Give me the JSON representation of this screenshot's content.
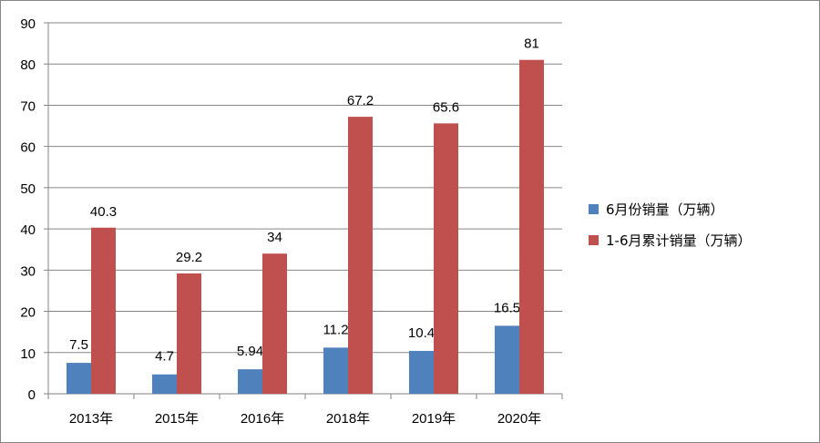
{
  "chart_data": {
    "type": "bar",
    "title": "",
    "xlabel": "",
    "ylabel": "",
    "categories": [
      "2013年",
      "2015年",
      "2016年",
      "2018年",
      "2019年",
      "2020年"
    ],
    "series": [
      {
        "name": "6月份销量（万辆）",
        "values": [
          7.5,
          4.7,
          5.94,
          11.2,
          10.4,
          16.5
        ],
        "labels": [
          "7.5",
          "4.7",
          "5.94",
          "11.2",
          "10.4",
          "16.5"
        ],
        "color": "#4f81bd"
      },
      {
        "name": "1-6月累计销量（万辆）",
        "values": [
          40.3,
          29.2,
          34,
          67.2,
          65.6,
          81
        ],
        "labels": [
          "40.3",
          "29.2",
          "34",
          "67.2",
          "65.6",
          "81"
        ],
        "color": "#c0504d"
      }
    ],
    "ylim": [
      0,
      90
    ],
    "yticks": [
      0,
      10,
      20,
      30,
      40,
      50,
      60,
      70,
      80,
      90
    ],
    "grid": true,
    "legend": "right"
  }
}
